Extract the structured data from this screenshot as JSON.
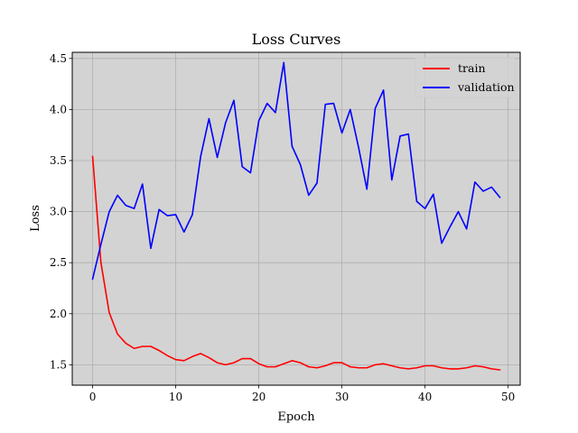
{
  "chart_data": {
    "type": "line",
    "title": "Loss Curves",
    "xlabel": "Epoch",
    "ylabel": "Loss",
    "xlim": [
      -2.45,
      51.45
    ],
    "ylim": [
      1.3,
      4.56
    ],
    "xticks": [
      0,
      10,
      20,
      30,
      40,
      50
    ],
    "yticks": [
      1.5,
      2.0,
      2.5,
      3.0,
      3.5,
      4.0,
      4.5
    ],
    "ytick_labels": [
      "1.5",
      "2.0",
      "2.5",
      "3.0",
      "3.5",
      "4.0",
      "4.5"
    ],
    "grid": true,
    "background": "#d3d3d3",
    "legend_position": "top-right",
    "x": [
      0,
      1,
      2,
      3,
      4,
      5,
      6,
      7,
      8,
      9,
      10,
      11,
      12,
      13,
      14,
      15,
      16,
      17,
      18,
      19,
      20,
      21,
      22,
      23,
      24,
      25,
      26,
      27,
      28,
      29,
      30,
      31,
      32,
      33,
      34,
      35,
      36,
      37,
      38,
      39,
      40,
      41,
      42,
      43,
      44,
      45,
      46,
      47,
      48,
      49
    ],
    "series": [
      {
        "name": "train",
        "color": "#ff0000",
        "values": [
          3.54,
          2.5,
          2.01,
          1.8,
          1.71,
          1.66,
          1.68,
          1.68,
          1.64,
          1.59,
          1.55,
          1.54,
          1.58,
          1.61,
          1.57,
          1.52,
          1.5,
          1.52,
          1.56,
          1.56,
          1.51,
          1.48,
          1.48,
          1.51,
          1.54,
          1.52,
          1.48,
          1.47,
          1.49,
          1.52,
          1.52,
          1.48,
          1.47,
          1.47,
          1.5,
          1.51,
          1.49,
          1.47,
          1.46,
          1.47,
          1.49,
          1.49,
          1.47,
          1.46,
          1.46,
          1.47,
          1.49,
          1.48,
          1.46,
          1.45
        ]
      },
      {
        "name": "validation",
        "color": "#0000ff",
        "values": [
          2.34,
          2.68,
          3.0,
          3.16,
          3.06,
          3.03,
          3.27,
          2.64,
          3.02,
          2.96,
          2.97,
          2.8,
          2.97,
          3.54,
          3.91,
          3.53,
          3.87,
          4.09,
          3.44,
          3.38,
          3.89,
          4.06,
          3.97,
          4.46,
          3.64,
          3.46,
          3.16,
          3.28,
          4.05,
          4.06,
          3.77,
          4.0,
          3.63,
          3.22,
          4.01,
          4.19,
          3.31,
          3.74,
          3.76,
          3.1,
          3.03,
          3.17,
          2.69,
          2.85,
          3.0,
          2.83,
          3.29,
          3.2,
          3.24,
          3.14
        ]
      }
    ]
  }
}
